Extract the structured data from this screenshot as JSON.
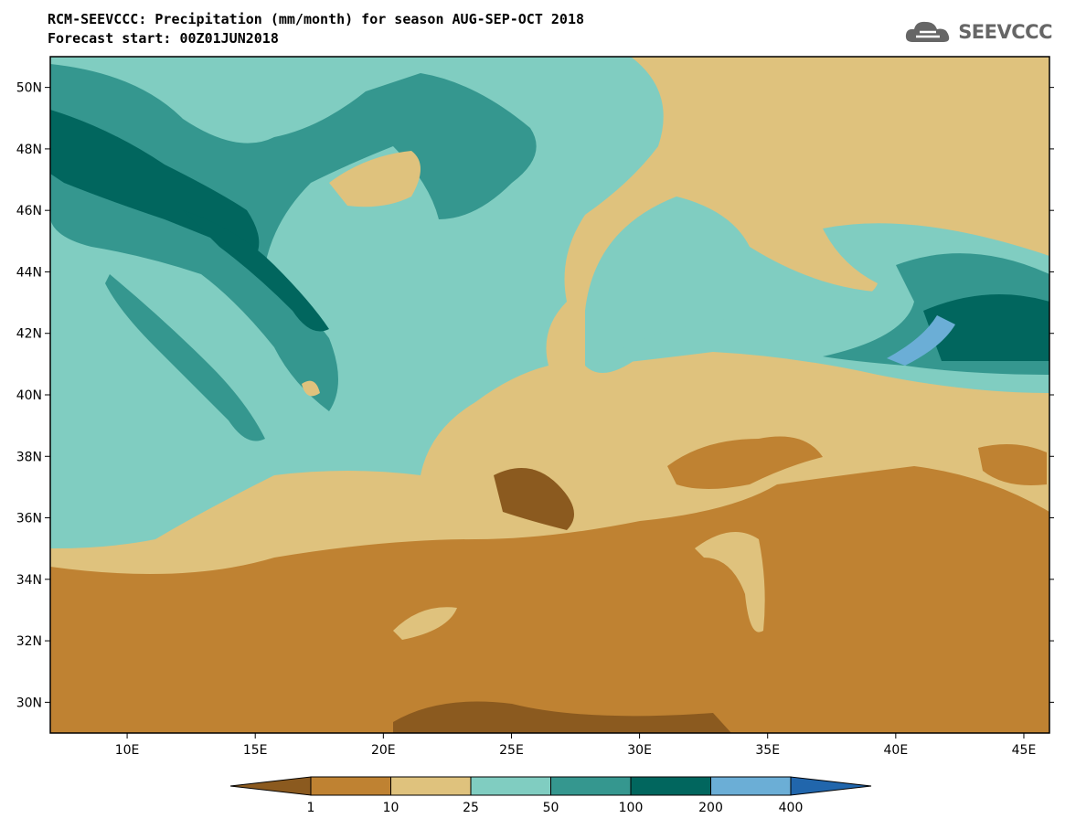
{
  "header": {
    "title_line1": "RCM-SEEVCCC: Precipitation (mm/month) for season AUG-SEP-OCT 2018",
    "title_line2": "Forecast start: 00Z01JUN2018",
    "logo_text": "SEEVCCC"
  },
  "map": {
    "lat_ticks": [
      "50N",
      "48N",
      "46N",
      "44N",
      "42N",
      "40N",
      "38N",
      "36N",
      "34N",
      "32N",
      "30N"
    ],
    "lon_ticks": [
      "10E",
      "15E",
      "20E",
      "25E",
      "30E",
      "35E",
      "40E",
      "45E"
    ],
    "lon_range": [
      7,
      46
    ],
    "lat_range": [
      29,
      51
    ]
  },
  "colorbar": {
    "labels": [
      "1",
      "10",
      "25",
      "50",
      "100",
      "200",
      "400"
    ],
    "colors": [
      "#8b5a1f",
      "#bf8232",
      "#dfc27d",
      "#80cdc1",
      "#35978f",
      "#01665e",
      "#6baed6",
      "#2166ac"
    ]
  }
}
